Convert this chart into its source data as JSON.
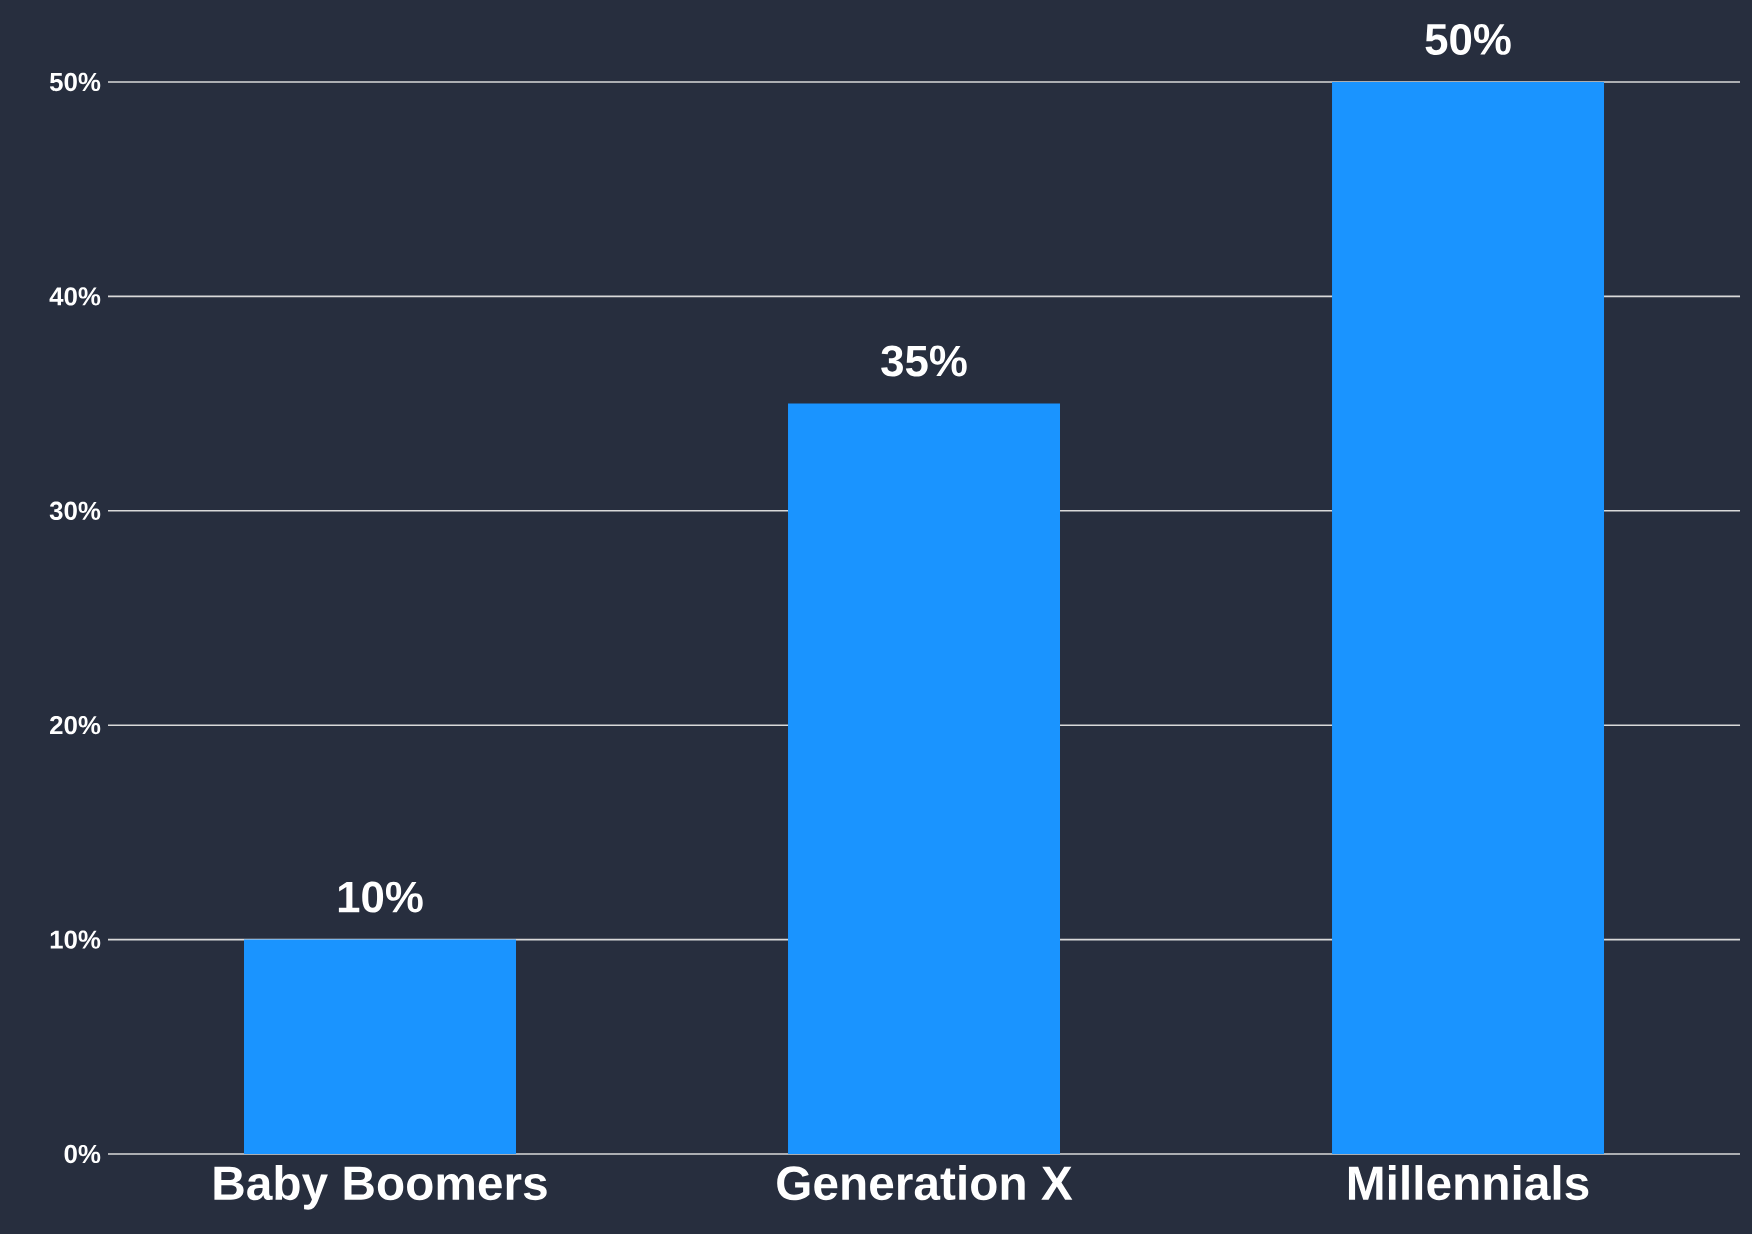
{
  "chart_data": {
    "type": "bar",
    "categories": [
      "Baby Boomers",
      "Generation X",
      "Millennials"
    ],
    "values": [
      10,
      35,
      50
    ],
    "value_labels": [
      "10%",
      "35%",
      "50%"
    ],
    "color": "#1a94ff",
    "ylim": [
      0,
      50
    ],
    "yticks": [
      {
        "value": 0,
        "label": "0%"
      },
      {
        "value": 10,
        "label": "10%"
      },
      {
        "value": 20,
        "label": "20%"
      },
      {
        "value": 30,
        "label": "30%"
      },
      {
        "value": 40,
        "label": "40%"
      },
      {
        "value": 50,
        "label": "50%"
      }
    ],
    "grid": "y"
  }
}
